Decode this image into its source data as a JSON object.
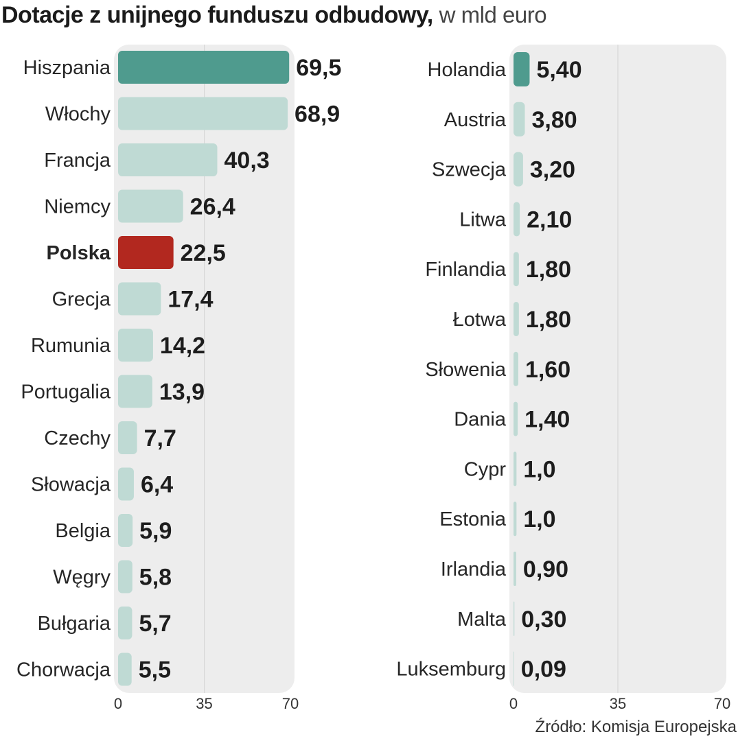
{
  "title": "Dotacje z unijnego funduszu odbudowy,",
  "title_unit": "w mld euro",
  "source": "Źródło: Komisja Europejska",
  "colors": {
    "default_bar": "#bfdad4",
    "top_bar": "#4f9b8e",
    "poland_bar": "#b2281f",
    "panel_background": "#ededed"
  },
  "chart_data": [
    {
      "type": "bar",
      "orientation": "horizontal",
      "categories": [
        "Hiszpania",
        "Włochy",
        "Francja",
        "Niemcy",
        "Polska",
        "Grecja",
        "Rumunia",
        "Portugalia",
        "Czechy",
        "Słowacja",
        "Belgia",
        "Węgry",
        "Bułgaria",
        "Chorwacja"
      ],
      "values": [
        69.5,
        68.9,
        40.3,
        26.4,
        22.5,
        17.4,
        14.2,
        13.9,
        7.7,
        6.4,
        5.9,
        5.8,
        5.7,
        5.5
      ],
      "value_labels": [
        "69,5",
        "68,9",
        "40,3",
        "26,4",
        "22,5",
        "17,4",
        "14,2",
        "13,9",
        "7,7",
        "6,4",
        "5,9",
        "5,8",
        "5,7",
        "5,5"
      ],
      "highlight": {
        "Hiszpania": "top",
        "Polska": "poland"
      },
      "bold_labels": [
        "Polska"
      ],
      "xlim": [
        0,
        70
      ],
      "ticks": [
        0,
        35,
        70
      ],
      "tick_labels": [
        "0",
        "35",
        "70"
      ],
      "grid": true
    },
    {
      "type": "bar",
      "orientation": "horizontal",
      "categories": [
        "Holandia",
        "Austria",
        "Szwecja",
        "Litwa",
        "Finlandia",
        "Łotwa",
        "Słowenia",
        "Dania",
        "Cypr",
        "Estonia",
        "Irlandia",
        "Malta",
        "Luksemburg"
      ],
      "values": [
        5.4,
        3.8,
        3.2,
        2.1,
        1.8,
        1.8,
        1.6,
        1.4,
        1.0,
        1.0,
        0.9,
        0.3,
        0.09
      ],
      "value_labels": [
        "5,40",
        "3,80",
        "3,20",
        "2,10",
        "1,80",
        "1,80",
        "1,60",
        "1,40",
        "1,0",
        "1,0",
        "0,90",
        "0,30",
        "0,09"
      ],
      "highlight": {
        "Holandia": "top"
      },
      "bold_labels": [],
      "xlim": [
        0,
        70
      ],
      "ticks": [
        0,
        35,
        70
      ],
      "tick_labels": [
        "0",
        "35",
        "70"
      ],
      "grid": true
    }
  ]
}
